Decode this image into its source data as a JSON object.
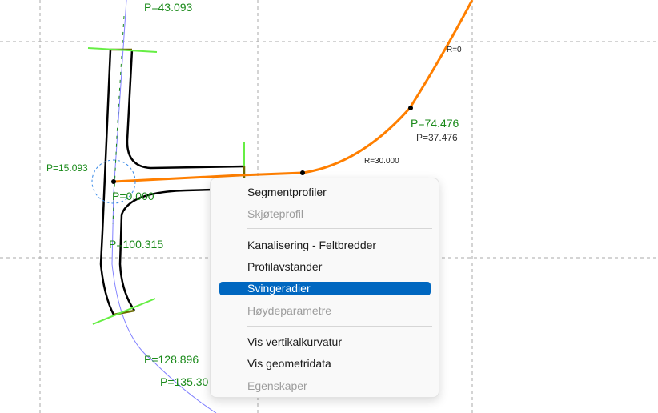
{
  "canvas": {
    "labels": {
      "top_partial": "P=43.093",
      "p_junction_a": "P=15.093",
      "p_junction_b": "P=0.000",
      "p_100": "P=100.315",
      "p_128": "P=128.896",
      "p_135": "P=135.30",
      "p_74a": "P=37.476",
      "p_74b": "P=74.476",
      "r0": "R=0",
      "r30": "R=30.000"
    },
    "colors": {
      "alignment": "#ff7f00",
      "edge": "#000000",
      "centerline": "#8080ff",
      "profile": "#1a8a1a",
      "boundary": "#66ee44"
    }
  },
  "context_menu": {
    "items": [
      {
        "label": "Segmentprofiler",
        "enabled": true
      },
      {
        "label": "Skjøteprofil",
        "enabled": false
      },
      {
        "label": "Kanalisering - Feltbredder",
        "enabled": true
      },
      {
        "label": "Profilavstander",
        "enabled": true
      },
      {
        "label": "Svingeradier",
        "enabled": true,
        "highlighted": true
      },
      {
        "label": "Høydeparametre",
        "enabled": false
      },
      {
        "label": "Vis vertikalkurvatur",
        "enabled": true
      },
      {
        "label": "Vis geometridata",
        "enabled": true
      },
      {
        "label": "Egenskaper",
        "enabled": false
      }
    ],
    "highlight_color": "#0067c0"
  }
}
